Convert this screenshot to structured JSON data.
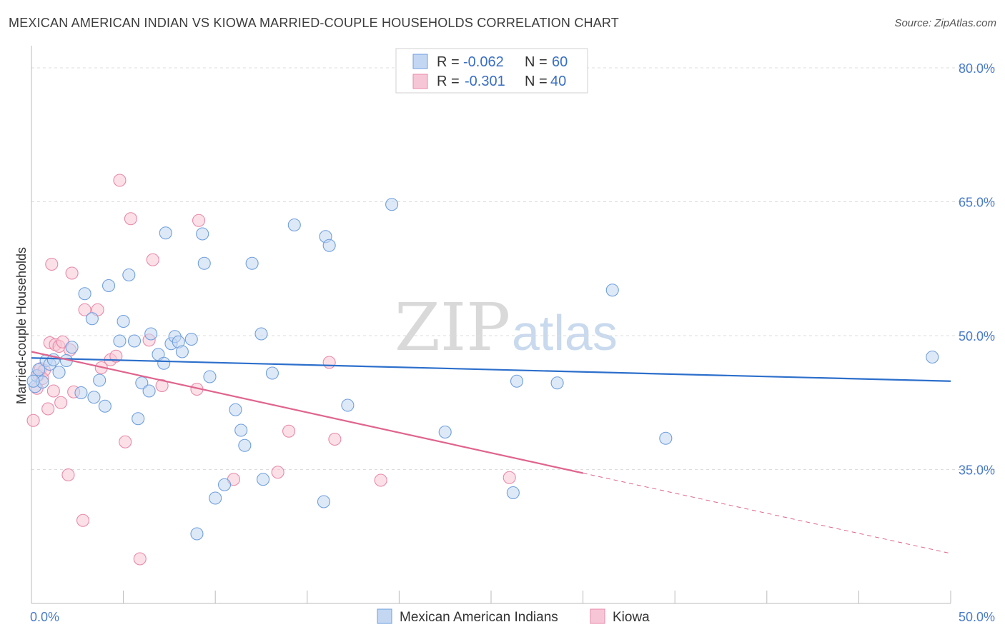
{
  "title": "MEXICAN AMERICAN INDIAN VS KIOWA MARRIED-COUPLE HOUSEHOLDS CORRELATION CHART",
  "source": "Source: ZipAtlas.com",
  "watermark": {
    "zip": "ZIP",
    "atlas": "atlas"
  },
  "colors": {
    "blue": "#6f9fdd",
    "blue_fill": "#c3d7f3",
    "blue_line": "#2c6fcb",
    "pink": "#e889a8",
    "pink_fill": "#f7c6d6",
    "pink_line": "#e0648e",
    "grid": "#dddddd",
    "axis_label": "#4a7cc7"
  },
  "chart_data": {
    "type": "scatter",
    "ylabel": "Married-couple Households",
    "xlim": [
      0,
      50
    ],
    "ylim": [
      20,
      82
    ],
    "y_ticks": [
      35,
      50,
      65,
      80
    ],
    "y_tick_labels": [
      "35.0%",
      "50.0%",
      "65.0%",
      "80.0%"
    ],
    "x_tick_labels": [
      "0.0%",
      "50.0%"
    ],
    "grid": "horizontal dashed",
    "legend": {
      "position": "top-center",
      "entries": [
        {
          "r_label": "R =",
          "r_value": "-0.062",
          "n_label": "N =",
          "n_value": "60"
        },
        {
          "r_label": "R =",
          "r_value": "-0.301",
          "n_label": "N =",
          "n_value": "40"
        }
      ]
    },
    "series": [
      {
        "name": "Mexican American Indians",
        "color": "#6f9fdd",
        "trend": {
          "x": [
            0,
            50
          ],
          "y": [
            47.5,
            44.9
          ],
          "dashed_from": null
        },
        "points": [
          [
            0.2,
            44.3
          ],
          [
            0.3,
            45.5
          ],
          [
            0.4,
            46.2
          ],
          [
            0.6,
            44.8
          ],
          [
            0.8,
            47.2
          ],
          [
            1.0,
            46.8
          ],
          [
            1.2,
            47.3
          ],
          [
            1.5,
            45.9
          ],
          [
            1.9,
            47.2
          ],
          [
            2.2,
            48.7
          ],
          [
            2.7,
            43.6
          ],
          [
            2.9,
            54.7
          ],
          [
            3.3,
            51.9
          ],
          [
            3.4,
            43.1
          ],
          [
            3.7,
            45.0
          ],
          [
            4.0,
            42.1
          ],
          [
            4.2,
            55.6
          ],
          [
            4.8,
            49.4
          ],
          [
            5.0,
            51.6
          ],
          [
            5.3,
            56.8
          ],
          [
            5.6,
            49.4
          ],
          [
            5.8,
            40.7
          ],
          [
            6.0,
            44.7
          ],
          [
            6.4,
            43.8
          ],
          [
            6.5,
            50.2
          ],
          [
            6.9,
            47.9
          ],
          [
            7.2,
            46.9
          ],
          [
            7.3,
            61.5
          ],
          [
            7.6,
            49.1
          ],
          [
            7.8,
            49.9
          ],
          [
            8.0,
            49.3
          ],
          [
            8.2,
            48.2
          ],
          [
            8.7,
            49.6
          ],
          [
            9.0,
            27.8
          ],
          [
            9.3,
            61.4
          ],
          [
            9.4,
            58.1
          ],
          [
            9.7,
            45.4
          ],
          [
            10.0,
            31.8
          ],
          [
            10.5,
            33.3
          ],
          [
            11.1,
            41.7
          ],
          [
            11.4,
            39.4
          ],
          [
            11.6,
            37.7
          ],
          [
            12.0,
            58.1
          ],
          [
            12.5,
            50.2
          ],
          [
            12.6,
            33.9
          ],
          [
            13.1,
            45.8
          ],
          [
            14.3,
            62.4
          ],
          [
            15.9,
            31.4
          ],
          [
            16.0,
            61.1
          ],
          [
            16.2,
            60.1
          ],
          [
            17.2,
            42.2
          ],
          [
            19.6,
            64.7
          ],
          [
            22.5,
            39.2
          ],
          [
            26.2,
            32.4
          ],
          [
            26.4,
            44.9
          ],
          [
            28.6,
            44.7
          ],
          [
            31.6,
            55.1
          ],
          [
            34.5,
            38.5
          ],
          [
            49.0,
            47.6
          ],
          [
            0.1,
            44.9
          ]
        ]
      },
      {
        "name": "Kiowa",
        "color": "#e889a8",
        "trend": {
          "x": [
            0,
            30,
            50
          ],
          "y": [
            48.2,
            34.6,
            25.6
          ],
          "dashed_from": 30
        },
        "points": [
          [
            0.1,
            40.5
          ],
          [
            0.4,
            45.6
          ],
          [
            0.5,
            46.3
          ],
          [
            0.7,
            46.1
          ],
          [
            0.9,
            41.8
          ],
          [
            1.0,
            49.2
          ],
          [
            1.2,
            43.8
          ],
          [
            1.3,
            49.0
          ],
          [
            1.5,
            48.8
          ],
          [
            1.6,
            42.5
          ],
          [
            1.7,
            49.3
          ],
          [
            2.0,
            34.4
          ],
          [
            2.1,
            48.4
          ],
          [
            2.2,
            57.0
          ],
          [
            2.3,
            43.7
          ],
          [
            2.8,
            29.3
          ],
          [
            2.9,
            52.9
          ],
          [
            3.6,
            52.9
          ],
          [
            3.8,
            46.4
          ],
          [
            4.3,
            47.3
          ],
          [
            4.6,
            47.7
          ],
          [
            4.8,
            67.4
          ],
          [
            5.1,
            38.1
          ],
          [
            5.4,
            63.1
          ],
          [
            5.9,
            25.0
          ],
          [
            6.4,
            49.5
          ],
          [
            6.6,
            58.5
          ],
          [
            7.1,
            44.4
          ],
          [
            9.0,
            44.0
          ],
          [
            9.1,
            62.9
          ],
          [
            11.0,
            33.9
          ],
          [
            13.4,
            34.7
          ],
          [
            14.0,
            39.3
          ],
          [
            16.2,
            47.0
          ],
          [
            16.5,
            38.4
          ],
          [
            19.0,
            33.8
          ],
          [
            26.0,
            34.1
          ],
          [
            1.1,
            58.0
          ],
          [
            0.3,
            44.1
          ],
          [
            0.6,
            45.2
          ]
        ]
      }
    ]
  }
}
